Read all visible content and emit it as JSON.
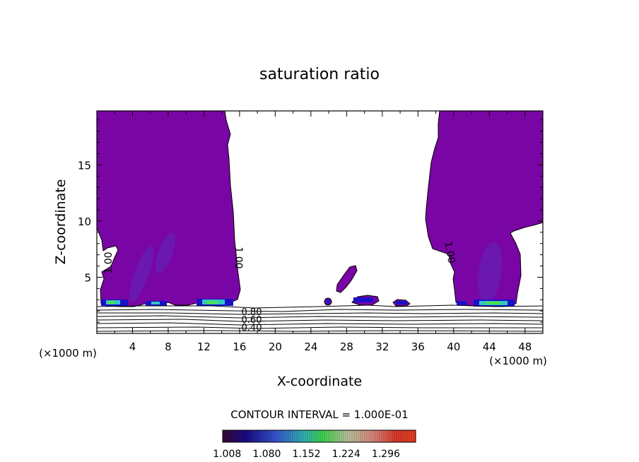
{
  "chart_data": {
    "type": "contour",
    "title": "saturation ratio",
    "xlabel": "X-coordinate",
    "ylabel": "Z-coordinate",
    "x_unit_left": "(×1000 m)",
    "x_unit_right": "(×1000 m)",
    "xlim": [
      0,
      50
    ],
    "ylim": [
      0,
      19.8
    ],
    "x_ticks": [
      4,
      8,
      12,
      16,
      20,
      24,
      28,
      32,
      36,
      40,
      44,
      48
    ],
    "y_ticks": [
      5,
      10,
      15
    ],
    "contour_interval_text": "CONTOUR INTERVAL = 1.000E-01",
    "contour_labels": [
      "1.00",
      "1.00",
      "1.00",
      "0.80",
      "0.60",
      "0.40"
    ],
    "colorbar": {
      "ticks": [
        "1.008",
        "1.080",
        "1.152",
        "1.224",
        "1.296"
      ],
      "min": 1.0,
      "max": 1.35
    },
    "colors": {
      "supersaturated_fill": "#7a05a5",
      "inner_shade": "#6a18b0",
      "deep_blue": "#1a10c8",
      "cyan": "#33c6c6",
      "green": "#4de04d",
      "line": "#000000"
    },
    "grid": false
  }
}
